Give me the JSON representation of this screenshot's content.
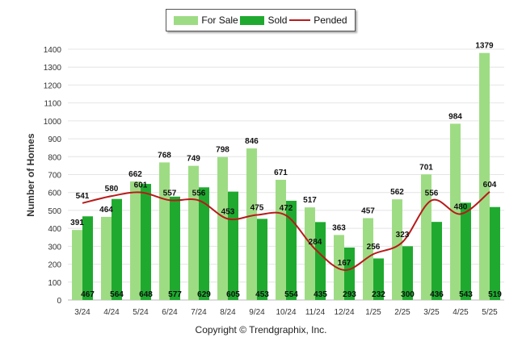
{
  "legend": {
    "for_sale": "For Sale",
    "sold": "Sold",
    "pended": "Pended"
  },
  "colors": {
    "for_sale": "#9edc84",
    "sold": "#1faa2f",
    "pended": "#b81a1a"
  },
  "copyright": "Copyright © Trendgraphix, Inc.",
  "chart_data": {
    "type": "bar",
    "categories": [
      "3/24",
      "4/24",
      "5/24",
      "6/24",
      "7/24",
      "8/24",
      "9/24",
      "10/24",
      "11/24",
      "12/24",
      "1/25",
      "2/25",
      "3/25",
      "4/25",
      "5/25"
    ],
    "series": [
      {
        "name": "For Sale",
        "type": "bar",
        "values": [
          391,
          464,
          662,
          768,
          749,
          798,
          846,
          671,
          517,
          363,
          457,
          562,
          701,
          984,
          1379
        ]
      },
      {
        "name": "Sold",
        "type": "bar",
        "values": [
          467,
          564,
          648,
          577,
          629,
          605,
          453,
          554,
          435,
          293,
          232,
          300,
          436,
          543,
          519
        ]
      },
      {
        "name": "Pended",
        "type": "line",
        "values": [
          541,
          580,
          601,
          557,
          556,
          453,
          475,
          472,
          284,
          167,
          256,
          323,
          556,
          480,
          604
        ]
      }
    ],
    "ylabel": "Number of Homes",
    "ylim": [
      0,
      1400
    ],
    "yticks": [
      0,
      100,
      200,
      300,
      400,
      500,
      600,
      700,
      800,
      900,
      1000,
      1100,
      1200,
      1300,
      1400
    ],
    "grid": true,
    "legend_position": "top-center"
  }
}
